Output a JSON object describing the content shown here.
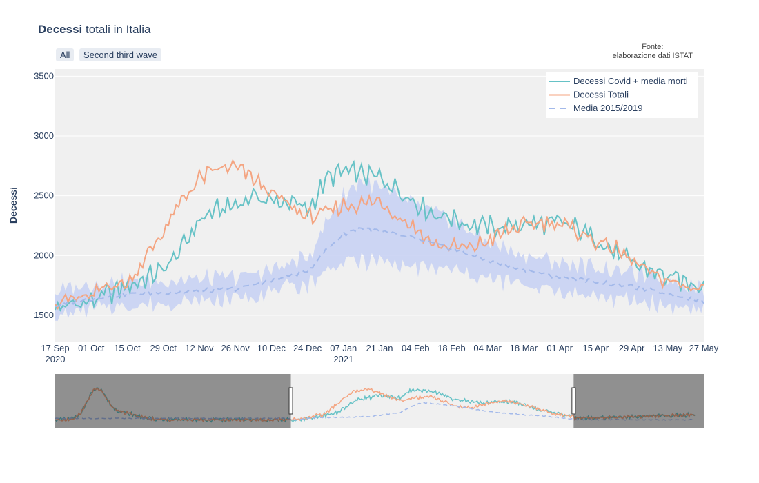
{
  "header": {
    "title_bold": "Decessi",
    "title_rest": " totali in Italia",
    "source_line1": "Fonte:",
    "source_line2": "elaborazione dati ISTAT"
  },
  "buttons": [
    {
      "label": "All"
    },
    {
      "label": "Second third  wave"
    }
  ],
  "chart_data": {
    "type": "line",
    "title": "Decessi totali in Italia",
    "ylabel": "Decessi",
    "ylim": [
      1280,
      3560
    ],
    "yticks": [
      1500,
      2000,
      2500,
      3000,
      3500
    ],
    "xlim": [
      "2020-09-17",
      "2021-05-27"
    ],
    "xticks": [
      {
        "date": "2020-09-17",
        "label": "17 Sep",
        "sub": "2020"
      },
      {
        "date": "2020-10-01",
        "label": "01 Oct"
      },
      {
        "date": "2020-10-15",
        "label": "15 Oct"
      },
      {
        "date": "2020-10-29",
        "label": "29 Oct"
      },
      {
        "date": "2020-11-12",
        "label": "12 Nov"
      },
      {
        "date": "2020-11-26",
        "label": "26 Nov"
      },
      {
        "date": "2020-12-10",
        "label": "10 Dec"
      },
      {
        "date": "2020-12-24",
        "label": "24 Dec"
      },
      {
        "date": "2021-01-07",
        "label": "07 Jan",
        "sub": "2021"
      },
      {
        "date": "2021-01-21",
        "label": "21 Jan"
      },
      {
        "date": "2021-02-04",
        "label": "04 Feb"
      },
      {
        "date": "2021-02-18",
        "label": "18 Feb"
      },
      {
        "date": "2021-03-04",
        "label": "04 Mar"
      },
      {
        "date": "2021-03-18",
        "label": "18 Mar"
      },
      {
        "date": "2021-04-01",
        "label": "01 Apr"
      },
      {
        "date": "2021-04-15",
        "label": "15 Apr"
      },
      {
        "date": "2021-04-29",
        "label": "29 Apr"
      },
      {
        "date": "2021-05-13",
        "label": "13 May"
      },
      {
        "date": "2021-05-27",
        "label": "27 May"
      }
    ],
    "legend_position": "top-right",
    "grid": true,
    "series": [
      {
        "name": "Decessi Covid + media morti",
        "color": "#66c2c6",
        "style": "solid",
        "points": [
          [
            "2020-09-17",
            1560
          ],
          [
            "2020-10-01",
            1620
          ],
          [
            "2020-10-15",
            1740
          ],
          [
            "2020-10-29",
            1880
          ],
          [
            "2020-11-05",
            2050
          ],
          [
            "2020-11-12",
            2300
          ],
          [
            "2020-11-19",
            2380
          ],
          [
            "2020-11-26",
            2420
          ],
          [
            "2020-12-03",
            2500
          ],
          [
            "2020-12-10",
            2450
          ],
          [
            "2020-12-17",
            2450
          ],
          [
            "2020-12-24",
            2380
          ],
          [
            "2021-01-01",
            2650
          ],
          [
            "2021-01-07",
            2700
          ],
          [
            "2021-01-14",
            2680
          ],
          [
            "2021-01-21",
            2650
          ],
          [
            "2021-01-28",
            2560
          ],
          [
            "2021-02-04",
            2450
          ],
          [
            "2021-02-11",
            2350
          ],
          [
            "2021-02-18",
            2320
          ],
          [
            "2021-02-25",
            2260
          ],
          [
            "2021-03-04",
            2240
          ],
          [
            "2021-03-11",
            2230
          ],
          [
            "2021-03-18",
            2270
          ],
          [
            "2021-03-25",
            2260
          ],
          [
            "2021-04-01",
            2270
          ],
          [
            "2021-04-08",
            2220
          ],
          [
            "2021-04-15",
            2150
          ],
          [
            "2021-04-22",
            2030
          ],
          [
            "2021-04-29",
            1930
          ],
          [
            "2021-05-06",
            1880
          ],
          [
            "2021-05-13",
            1820
          ],
          [
            "2021-05-20",
            1770
          ],
          [
            "2021-05-27",
            1760
          ]
        ]
      },
      {
        "name": "Decessi Totali",
        "color": "#f4a582",
        "style": "solid",
        "points": [
          [
            "2020-09-17",
            1620
          ],
          [
            "2020-10-01",
            1650
          ],
          [
            "2020-10-08",
            1760
          ],
          [
            "2020-10-15",
            1760
          ],
          [
            "2020-10-22",
            1980
          ],
          [
            "2020-10-29",
            2200
          ],
          [
            "2020-11-05",
            2450
          ],
          [
            "2020-11-12",
            2640
          ],
          [
            "2020-11-19",
            2720
          ],
          [
            "2020-11-26",
            2740
          ],
          [
            "2020-12-03",
            2640
          ],
          [
            "2020-12-10",
            2520
          ],
          [
            "2020-12-17",
            2420
          ],
          [
            "2020-12-24",
            2320
          ],
          [
            "2021-01-01",
            2360
          ],
          [
            "2021-01-07",
            2420
          ],
          [
            "2021-01-14",
            2430
          ],
          [
            "2021-01-21",
            2460
          ],
          [
            "2021-01-28",
            2330
          ],
          [
            "2021-02-04",
            2230
          ],
          [
            "2021-02-11",
            2090
          ],
          [
            "2021-02-18",
            2070
          ],
          [
            "2021-02-25",
            2060
          ],
          [
            "2021-03-04",
            2120
          ],
          [
            "2021-03-11",
            2200
          ],
          [
            "2021-03-18",
            2250
          ],
          [
            "2021-03-25",
            2280
          ],
          [
            "2021-04-01",
            2270
          ],
          [
            "2021-04-08",
            2200
          ],
          [
            "2021-04-15",
            2120
          ],
          [
            "2021-04-22",
            2060
          ],
          [
            "2021-04-29",
            1960
          ],
          [
            "2021-05-06",
            1850
          ],
          [
            "2021-05-13",
            1790
          ],
          [
            "2021-05-20",
            1740
          ],
          [
            "2021-05-27",
            1730
          ]
        ]
      },
      {
        "name": "Media 2015/2019",
        "color": "#a3b9ea",
        "style": "dash",
        "points": [
          [
            "2020-09-17",
            1580
          ],
          [
            "2020-10-01",
            1640
          ],
          [
            "2020-10-15",
            1680
          ],
          [
            "2020-10-29",
            1690
          ],
          [
            "2020-11-12",
            1700
          ],
          [
            "2020-11-26",
            1720
          ],
          [
            "2020-12-10",
            1790
          ],
          [
            "2020-12-24",
            1870
          ],
          [
            "2021-01-01",
            2060
          ],
          [
            "2021-01-07",
            2180
          ],
          [
            "2021-01-14",
            2230
          ],
          [
            "2021-01-21",
            2200
          ],
          [
            "2021-02-04",
            2140
          ],
          [
            "2021-02-18",
            2060
          ],
          [
            "2021-03-04",
            1960
          ],
          [
            "2021-03-18",
            1880
          ],
          [
            "2021-04-01",
            1820
          ],
          [
            "2021-04-15",
            1780
          ],
          [
            "2021-04-29",
            1740
          ],
          [
            "2021-05-13",
            1680
          ],
          [
            "2021-05-27",
            1620
          ]
        ]
      }
    ],
    "band": {
      "color": "#c5d0f3",
      "points": [
        [
          "2020-09-17",
          1480,
          1700
        ],
        [
          "2020-10-01",
          1560,
          1760
        ],
        [
          "2020-10-15",
          1580,
          1780
        ],
        [
          "2020-10-29",
          1600,
          1790
        ],
        [
          "2020-11-12",
          1620,
          1800
        ],
        [
          "2020-11-26",
          1640,
          1820
        ],
        [
          "2020-12-10",
          1700,
          1880
        ],
        [
          "2020-12-24",
          1760,
          1980
        ],
        [
          "2021-01-01",
          1880,
          2300
        ],
        [
          "2021-01-07",
          1950,
          2500
        ],
        [
          "2021-01-14",
          1950,
          2640
        ],
        [
          "2021-01-21",
          1950,
          2560
        ],
        [
          "2021-02-04",
          1900,
          2420
        ],
        [
          "2021-02-18",
          1880,
          2300
        ],
        [
          "2021-03-04",
          1800,
          2120
        ],
        [
          "2021-03-18",
          1760,
          2000
        ],
        [
          "2021-04-01",
          1700,
          1940
        ],
        [
          "2021-04-15",
          1660,
          1900
        ],
        [
          "2021-04-29",
          1620,
          1860
        ],
        [
          "2021-05-13",
          1580,
          1790
        ],
        [
          "2021-05-27",
          1540,
          1740
        ]
      ]
    },
    "rangeslider": {
      "full_range": [
        "2020-02-20",
        "2021-09-20"
      ],
      "selected": [
        "2020-09-17",
        "2021-05-27"
      ]
    }
  }
}
